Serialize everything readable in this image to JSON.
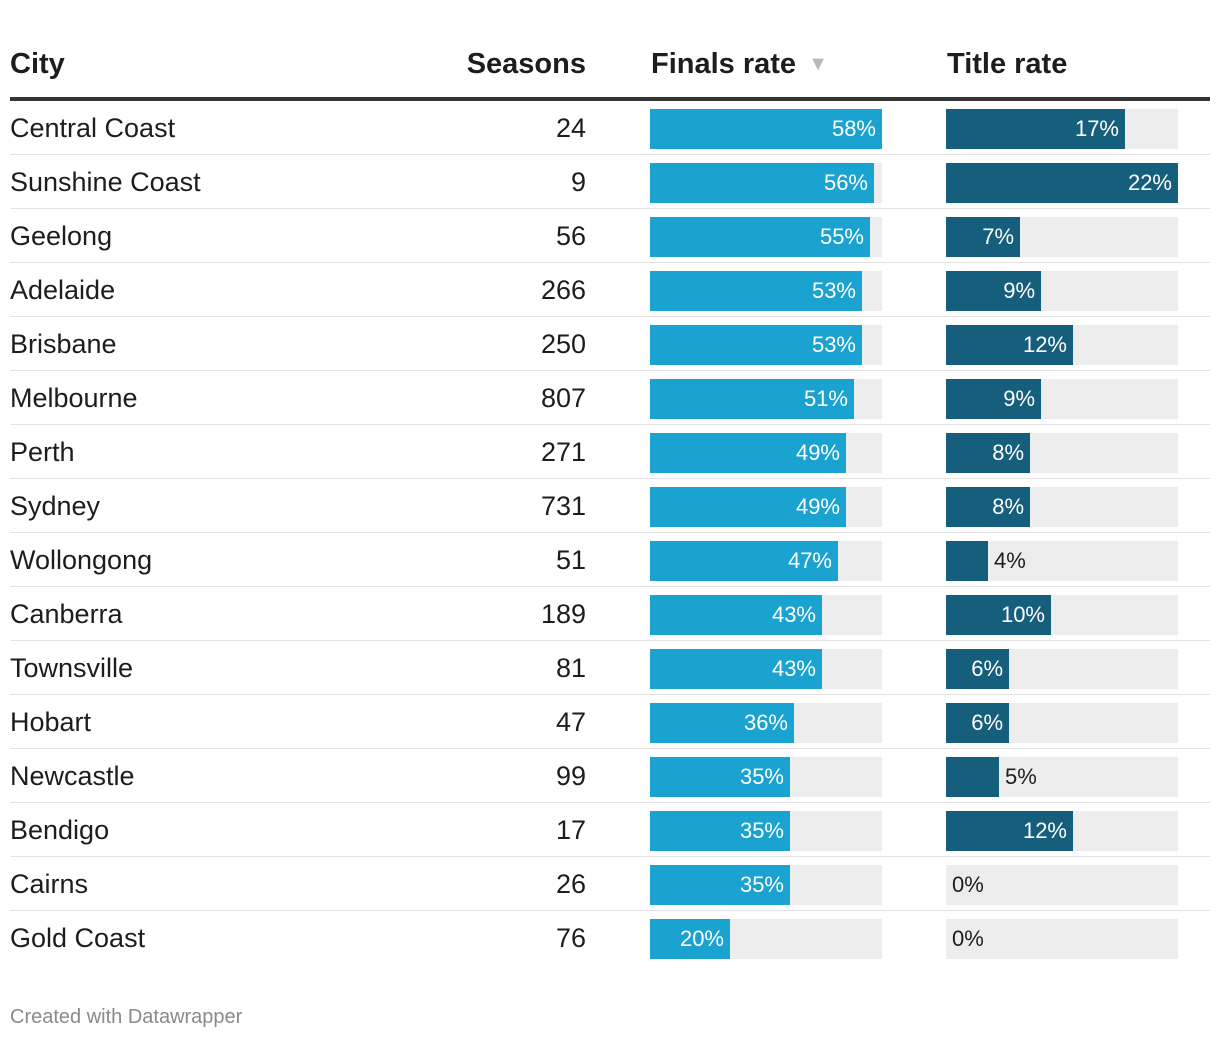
{
  "chart_data": {
    "type": "table",
    "columns": [
      "City",
      "Seasons",
      "Finals rate",
      "Title rate"
    ],
    "sort_column": "Finals rate",
    "sort_order": "descending",
    "x_range": [
      0,
      22
    ],
    "series": [
      {
        "name": "Finals rate",
        "color": "#1aa2d1"
      },
      {
        "name": "Title rate",
        "color": "#155f7c"
      }
    ],
    "rows": [
      {
        "city": "Central Coast",
        "seasons": "24",
        "finals": 58,
        "title": 17
      },
      {
        "city": "Sunshine Coast",
        "seasons": "9",
        "finals": 56,
        "title": 22
      },
      {
        "city": "Geelong",
        "seasons": "56",
        "finals": 55,
        "title": 7
      },
      {
        "city": "Adelaide",
        "seasons": "266",
        "finals": 53,
        "title": 9
      },
      {
        "city": "Brisbane",
        "seasons": "250",
        "finals": 53,
        "title": 12
      },
      {
        "city": "Melbourne",
        "seasons": "807",
        "finals": 51,
        "title": 9
      },
      {
        "city": "Perth",
        "seasons": "271",
        "finals": 49,
        "title": 8
      },
      {
        "city": "Sydney",
        "seasons": "731",
        "finals": 49,
        "title": 8
      },
      {
        "city": "Wollongong",
        "seasons": "51",
        "finals": 47,
        "title": 4
      },
      {
        "city": "Canberra",
        "seasons": "189",
        "finals": 43,
        "title": 10
      },
      {
        "city": "Townsville",
        "seasons": "81",
        "finals": 43,
        "title": 6
      },
      {
        "city": "Hobart",
        "seasons": "47",
        "finals": 36,
        "title": 6
      },
      {
        "city": "Newcastle",
        "seasons": "99",
        "finals": 35,
        "title": 5
      },
      {
        "city": "Bendigo",
        "seasons": "17",
        "finals": 35,
        "title": 12
      },
      {
        "city": "Cairns",
        "seasons": "26",
        "finals": 35,
        "title": 0
      },
      {
        "city": "Gold Coast",
        "seasons": "76",
        "finals": 20,
        "title": 0
      }
    ],
    "footer": "Created with Datawrapper"
  }
}
